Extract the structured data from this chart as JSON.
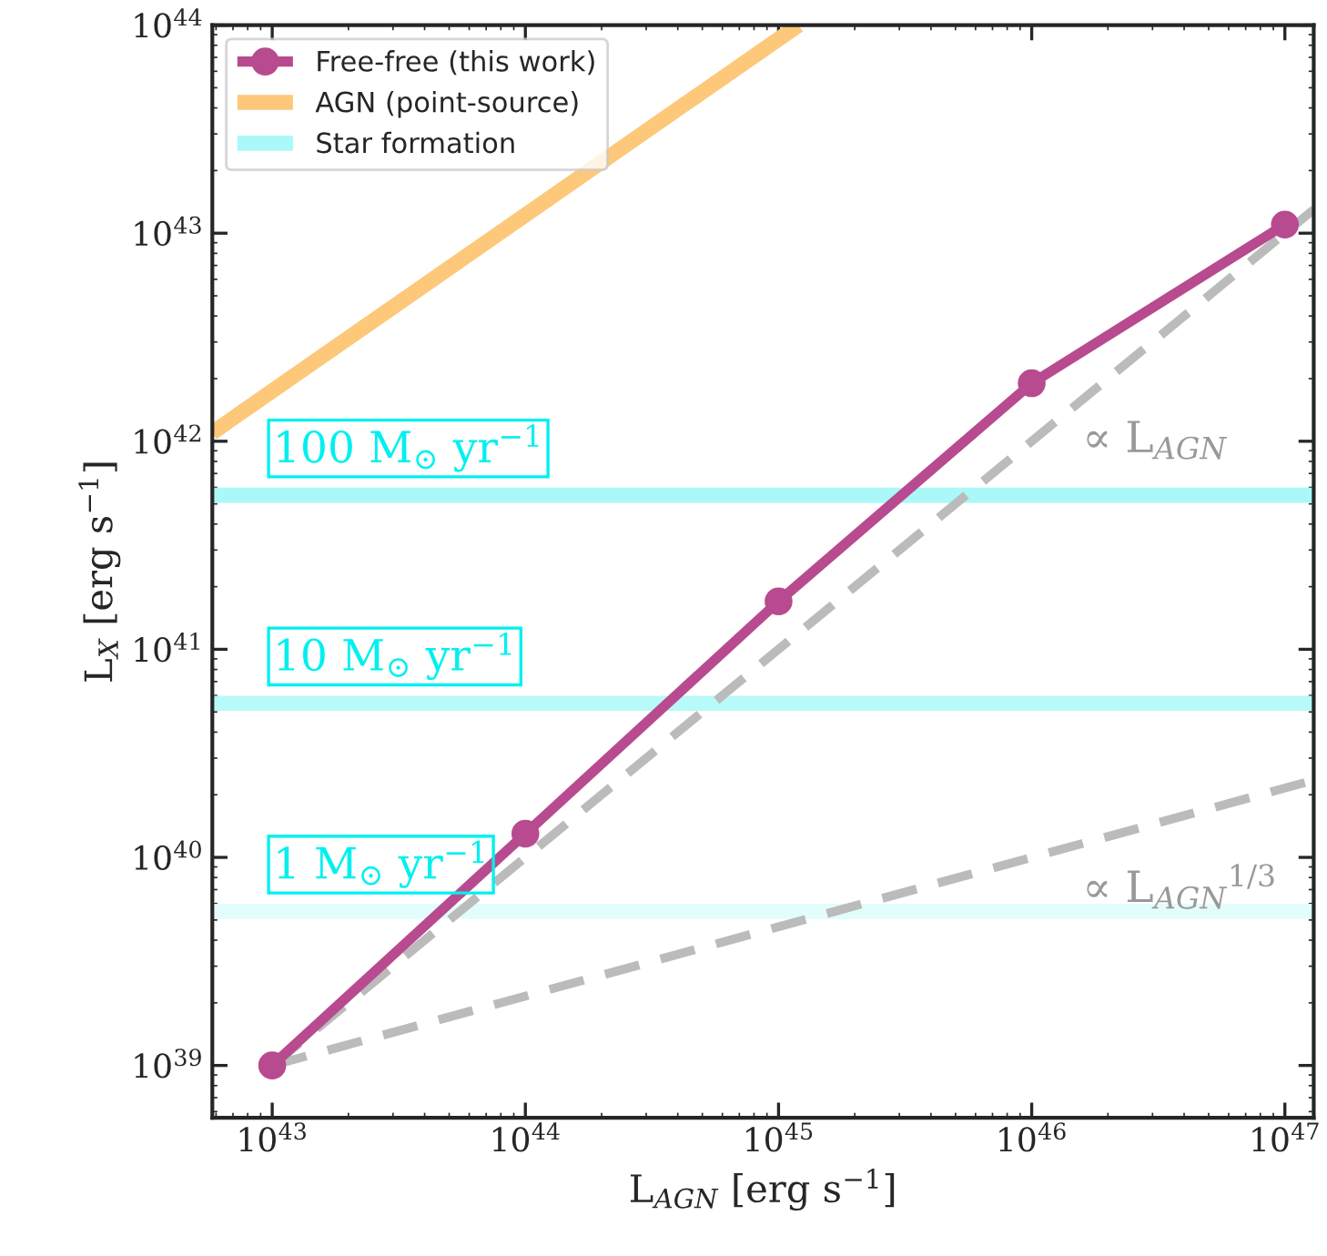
{
  "chart_data": {
    "type": "line",
    "log": "xy",
    "xlabel": "L$_{AGN}$ [erg s$^{−1}$]",
    "ylabel": "L$_{X}$ [erg s$^{−1}$]",
    "xlim": [
      5.8e+42,
      1.3e+47
    ],
    "ylim": [
      5.6e+38,
      1e+44
    ],
    "xticks": [
      {
        "value": 1e+43,
        "label": "10$^{43}$"
      },
      {
        "value": 1e+44,
        "label": "10$^{44}$"
      },
      {
        "value": 1e+45,
        "label": "10$^{45}$"
      },
      {
        "value": 1e+46,
        "label": "10$^{46}$"
      },
      {
        "value": 1e+47,
        "label": "10$^{47}$"
      }
    ],
    "yticks": [
      {
        "value": 1e+39,
        "label": "10$^{39}$"
      },
      {
        "value": 1e+40,
        "label": "10$^{40}$"
      },
      {
        "value": 1e+41,
        "label": "10$^{41}$"
      },
      {
        "value": 1e+42,
        "label": "10$^{42}$"
      },
      {
        "value": 1e+43,
        "label": "10$^{43}$"
      },
      {
        "value": 1e+44,
        "label": "10$^{44}$"
      }
    ],
    "legend": "top left",
    "grid": false,
    "series": [
      {
        "name": "Free-free (this work)",
        "color": "#b84b8f",
        "marker": "circle",
        "x": [
          1e+43,
          1e+44,
          1e+45,
          1e+46,
          1e+47
        ],
        "values": [
          1e+39,
          1.3e+40,
          1.7e+41,
          1.9e+42,
          1.1e+43
        ]
      },
      {
        "name": "AGN (point-source)",
        "color": "#fdc879",
        "x": [
          5.8e+42,
          1.2e+45
        ],
        "values": [
          1.1e+42,
          1e+44
        ]
      },
      {
        "name": "Star formation",
        "color": "#aaf8f8",
        "x": [
          5.8e+42,
          1.3e+47
        ],
        "values": [
          5.5e+41,
          5.5e+41
        ]
      },
      {
        "color": "#b8f9f9",
        "x": [
          5.8e+42,
          1.3e+47
        ],
        "values": [
          5.5e+40,
          5.5e+40
        ]
      },
      {
        "color": "#e3fcfc",
        "x": [
          5.8e+42,
          1.3e+47
        ],
        "values": [
          5.5e+39,
          5.5e+39
        ]
      },
      {
        "color": "#bbbbbb",
        "line_style": "dashed",
        "x": [
          1e+43,
          1.3e+47
        ],
        "values": [
          1e+39,
          1.3e+43
        ]
      },
      {
        "color": "#bbbbbb",
        "line_style": "dashed",
        "x": [
          1e+43,
          1.3e+47
        ],
        "values": [
          1e+39,
          2.35e+40
        ]
      }
    ],
    "annotations": [
      "100 M$_{⊙}$ yr$^{−1}$",
      "10 M$_{⊙}$ yr$^{−1}$",
      "1 M$_{⊙}$ yr$^{−1}$",
      "∝ L$_{AGN}$",
      "∝ L$_{AGN}$$^{1/3}$"
    ]
  }
}
